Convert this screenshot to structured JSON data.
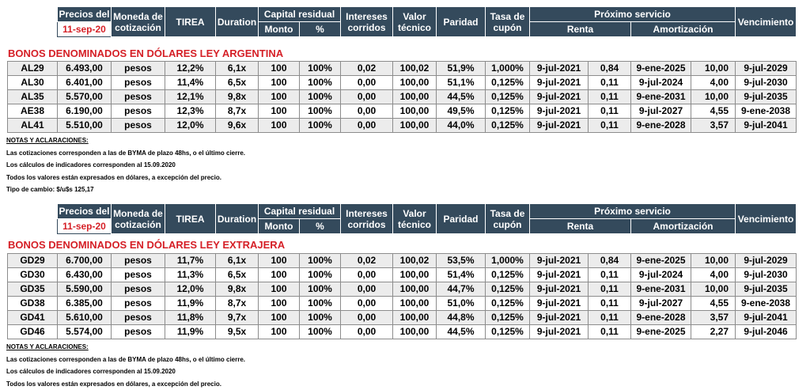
{
  "header": {
    "precios_del": "Precios del",
    "date": "11-sep-20",
    "moneda": [
      "Moneda de",
      "cotización"
    ],
    "tirea": "TIREA",
    "duration": "Duration",
    "capital_residual": "Capital residual",
    "monto": "Monto",
    "pct": "%",
    "intereses": [
      "Intereses",
      "corridos"
    ],
    "valor": [
      "Valor",
      "técnico"
    ],
    "paridad": "Paridad",
    "tasa": [
      "Tasa de",
      "cupón"
    ],
    "proximo": "Próximo servicio",
    "renta": "Renta",
    "amortizacion": "Amortización",
    "vencimiento": "Vencimiento"
  },
  "section1": {
    "title": "BONOS DENOMINADOS EN DÓLARES LEY ARGENTINA",
    "rows": [
      [
        "AL29",
        "6.493,00",
        "pesos",
        "12,2%",
        "6,1x",
        "100",
        "100%",
        "0,02",
        "100,02",
        "51,9%",
        "1,000%",
        "9-jul-2021",
        "0,84",
        "9-ene-2025",
        "10,00",
        "9-jul-2029"
      ],
      [
        "AL30",
        "6.401,00",
        "pesos",
        "11,4%",
        "6,5x",
        "100",
        "100%",
        "0,00",
        "100,00",
        "51,1%",
        "0,125%",
        "9-jul-2021",
        "0,11",
        "9-jul-2024",
        "4,00",
        "9-jul-2030"
      ],
      [
        "AL35",
        "5.570,00",
        "pesos",
        "12,1%",
        "9,8x",
        "100",
        "100%",
        "0,00",
        "100,00",
        "44,5%",
        "0,125%",
        "9-jul-2021",
        "0,11",
        "9-ene-2031",
        "10,00",
        "9-jul-2035"
      ],
      [
        "AE38",
        "6.190,00",
        "pesos",
        "12,3%",
        "8,7x",
        "100",
        "100%",
        "0,00",
        "100,00",
        "49,5%",
        "0,125%",
        "9-jul-2021",
        "0,11",
        "9-jul-2027",
        "4,55",
        "9-ene-2038"
      ],
      [
        "AL41",
        "5.510,00",
        "pesos",
        "12,0%",
        "9,6x",
        "100",
        "100%",
        "0,00",
        "100,00",
        "44,0%",
        "0,125%",
        "9-jul-2021",
        "0,11",
        "9-ene-2028",
        "3,57",
        "9-jul-2041"
      ]
    ],
    "notes": {
      "title": "NOTAS Y ACLARACIONES:",
      "lines": [
        "Las cotizaciones corresponden a las de BYMA de plazo 48hs, o el último cierre.",
        "Los cálculos de indicadores corresponden al 15.09.2020",
        "Todos los valores están expresados en dólares, a excepción del precio.",
        "Tipo de cambio: $/u$s 125,17"
      ]
    }
  },
  "section2": {
    "title": "BONOS DENOMINADOS EN DÓLARES LEY EXTRAJERA",
    "rows": [
      [
        "GD29",
        "6.700,00",
        "pesos",
        "11,7%",
        "6,1x",
        "100",
        "100%",
        "0,02",
        "100,02",
        "53,5%",
        "1,000%",
        "9-jul-2021",
        "0,84",
        "9-ene-2025",
        "10,00",
        "9-jul-2029"
      ],
      [
        "GD30",
        "6.430,00",
        "pesos",
        "11,3%",
        "6,5x",
        "100",
        "100%",
        "0,00",
        "100,00",
        "51,4%",
        "0,125%",
        "9-jul-2021",
        "0,11",
        "9-jul-2024",
        "4,00",
        "9-jul-2030"
      ],
      [
        "GD35",
        "5.590,00",
        "pesos",
        "12,0%",
        "9,8x",
        "100",
        "100%",
        "0,00",
        "100,00",
        "44,7%",
        "0,125%",
        "9-jul-2021",
        "0,11",
        "9-ene-2031",
        "10,00",
        "9-jul-2035"
      ],
      [
        "GD38",
        "6.385,00",
        "pesos",
        "11,9%",
        "8,7x",
        "100",
        "100%",
        "0,00",
        "100,00",
        "51,0%",
        "0,125%",
        "9-jul-2021",
        "0,11",
        "9-jul-2027",
        "4,55",
        "9-ene-2038"
      ],
      [
        "GD41",
        "5.610,00",
        "pesos",
        "11,8%",
        "9,7x",
        "100",
        "100%",
        "0,00",
        "100,00",
        "44,8%",
        "0,125%",
        "9-jul-2021",
        "0,11",
        "9-ene-2028",
        "3,57",
        "9-jul-2041"
      ],
      [
        "GD46",
        "5.574,00",
        "pesos",
        "11,9%",
        "9,5x",
        "100",
        "100%",
        "0,00",
        "100,00",
        "44,5%",
        "0,125%",
        "9-jul-2021",
        "0,11",
        "9-ene-2025",
        "2,27",
        "9-jul-2046"
      ]
    ],
    "notes": {
      "title": "NOTAS Y ACLARACIONES:",
      "lines": [
        "Las cotizaciones corresponden a las de BYMA de plazo 48hs, o el último cierre.",
        "Los cálculos de indicadores corresponden al 15.09.2020",
        "Todos los valores están expresados en dólares, a excepción del precio."
      ]
    }
  },
  "colors": {
    "header_bg": "#344a5c",
    "accent_red": "#d51f26",
    "row_shade": "#ececec"
  }
}
